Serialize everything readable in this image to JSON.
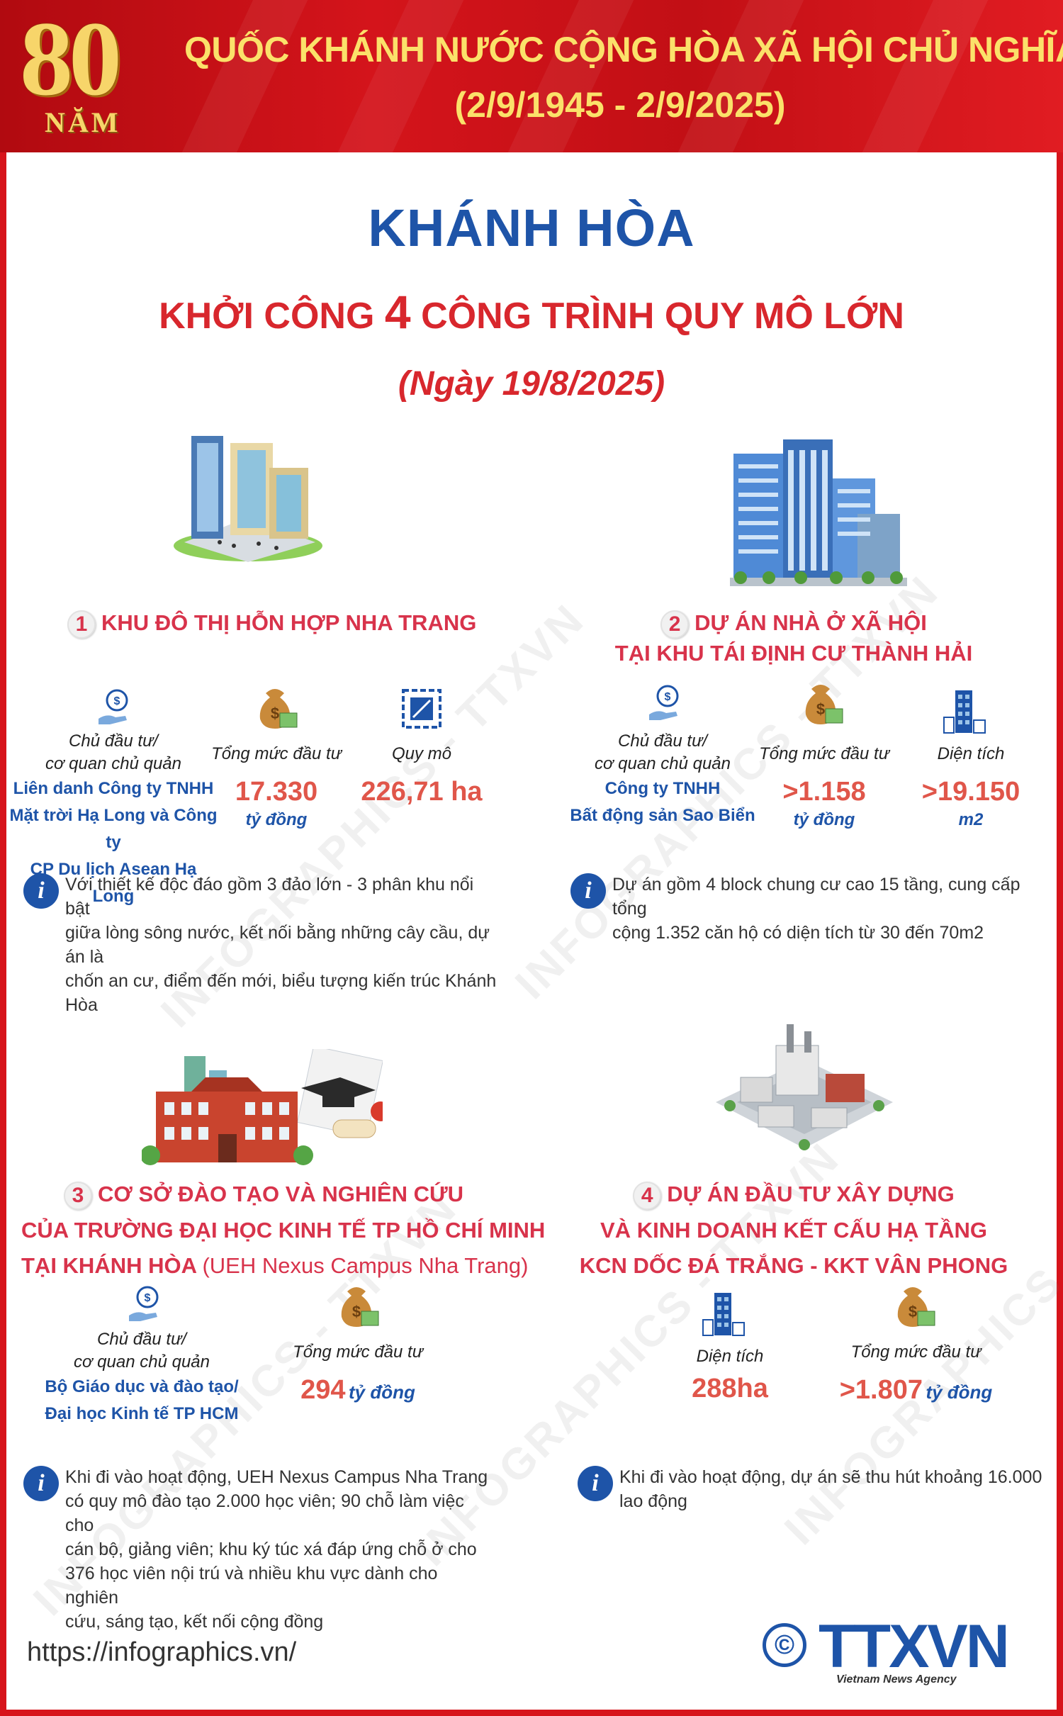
{
  "header": {
    "badge_number": "80",
    "badge_word": "NĂM",
    "line1": "QUỐC KHÁNH NƯỚC CỘNG HÒA XÃ HỘI CHỦ NGHĨA VIỆT NAM",
    "line2": "(2/9/1945 - 2/9/2025)"
  },
  "title": {
    "province": "KHÁNH HÒA",
    "subtitle_pre": "KHỞI CÔNG",
    "subtitle_num": "4",
    "subtitle_post": "CÔNG TRÌNH QUY MÔ LỚN",
    "date": "(Ngày 19/8/2025)"
  },
  "watermark": "INFOGRAPHICS - TTXVN",
  "projects": [
    {
      "num": "1",
      "title_lines": [
        "KHU ĐÔ THỊ HỖN HỢP NHA TRANG"
      ],
      "owner_label_1": "Chủ đầu tư/",
      "owner_label_2": "cơ quan chủ quản",
      "owner_lines": [
        "Liên danh Công ty TNHH",
        "Mặt trời Hạ Long và Công ty",
        "CP Du lịch Asean Hạ Long"
      ],
      "invest_label": "Tổng mức đầu tư",
      "invest_value": "17.330",
      "invest_unit": "tỷ đồng",
      "scale_label": "Quy mô",
      "scale_value": "226,71 ha",
      "info_lines": [
        "Với thiết kế độc đáo gồm 3 đảo lớn - 3 phân khu nổi bật",
        "giữa lòng sông nước, kết nối bằng những cây cầu, dự án là",
        "chốn an cư, điểm đến mới, biểu tượng kiến trúc Khánh Hòa"
      ]
    },
    {
      "num": "2",
      "title_lines": [
        "DỰ ÁN NHÀ Ở XÃ HỘI",
        "TẠI KHU TÁI ĐỊNH CƯ THÀNH HẢI"
      ],
      "owner_label_1": "Chủ đầu tư/",
      "owner_label_2": "cơ quan chủ quản",
      "owner_lines": [
        "Công ty TNHH",
        "Bất động sản Sao Biển"
      ],
      "invest_label": "Tổng mức đầu tư",
      "invest_value": ">1.158",
      "invest_unit": "tỷ đồng",
      "area_label": "Diện tích",
      "area_value": ">19.150",
      "area_unit": "m2",
      "info_lines": [
        "Dự án gồm 4 block chung cư cao 15 tầng, cung cấp tổng",
        "cộng 1.352 căn hộ có diện tích từ 30 đến 70m2"
      ]
    },
    {
      "num": "3",
      "title_lines": [
        "CƠ SỞ ĐÀO TẠO VÀ NGHIÊN CỨU",
        "CỦA TRƯỜNG ĐẠI HỌC KINH TẾ TP HỒ CHÍ MINH",
        "TẠI KHÁNH HÒA"
      ],
      "title_suffix": "(UEH Nexus Campus Nha Trang)",
      "owner_label_1": "Chủ đầu tư/",
      "owner_label_2": "cơ quan chủ quản",
      "owner_lines": [
        "Bộ Giáo dục và đào tạo/",
        "Đại học Kinh tế TP HCM"
      ],
      "invest_label": "Tổng mức đầu tư",
      "invest_value": "294",
      "invest_unit": "tỷ đồng",
      "info_lines": [
        "Khi đi vào hoạt động, UEH Nexus Campus Nha Trang",
        "có quy mô đào tạo 2.000 học viên; 90 chỗ làm việc cho",
        "cán bộ, giảng viên; khu ký túc xá đáp ứng chỗ ở cho",
        "376 học viên nội trú và nhiều khu vực dành cho nghiên",
        "cứu, sáng tạo, kết nối cộng đồng"
      ]
    },
    {
      "num": "4",
      "title_lines": [
        "DỰ ÁN ĐẦU TƯ XÂY DỰNG",
        "VÀ KINH DOANH KẾT CẤU HẠ TẦNG",
        "KCN DỐC ĐÁ TRẮNG - KKT VÂN PHONG"
      ],
      "area_label": "Diện tích",
      "area_value": "288ha",
      "invest_label": "Tổng mức đầu tư",
      "invest_value": ">1.807",
      "invest_unit": "tỷ đồng",
      "info_lines": [
        "Khi đi vào hoạt động, dự án sẽ thu hút khoảng 16.000",
        "lao động"
      ]
    }
  ],
  "info_glyph": "i",
  "footer": {
    "url": "https://infographics.vn/",
    "copyright": "©",
    "logo": "TTXVN",
    "agency": "Vietnam News Agency"
  },
  "colors": {
    "header_red": "#d4141b",
    "header_gold": "#fbe16a",
    "title_blue": "#1e54a8",
    "accent_red": "#d8272d",
    "project_pink": "#d8334b",
    "value_coral": "#e0564a"
  },
  "icons": [
    "building-cluster-icon",
    "apartment-towers-icon",
    "university-campus-icon",
    "industrial-park-icon",
    "investor-hand-icon",
    "money-bag-icon",
    "area-scale-icon",
    "tower-area-icon",
    "info-icon",
    "copyright-icon"
  ]
}
